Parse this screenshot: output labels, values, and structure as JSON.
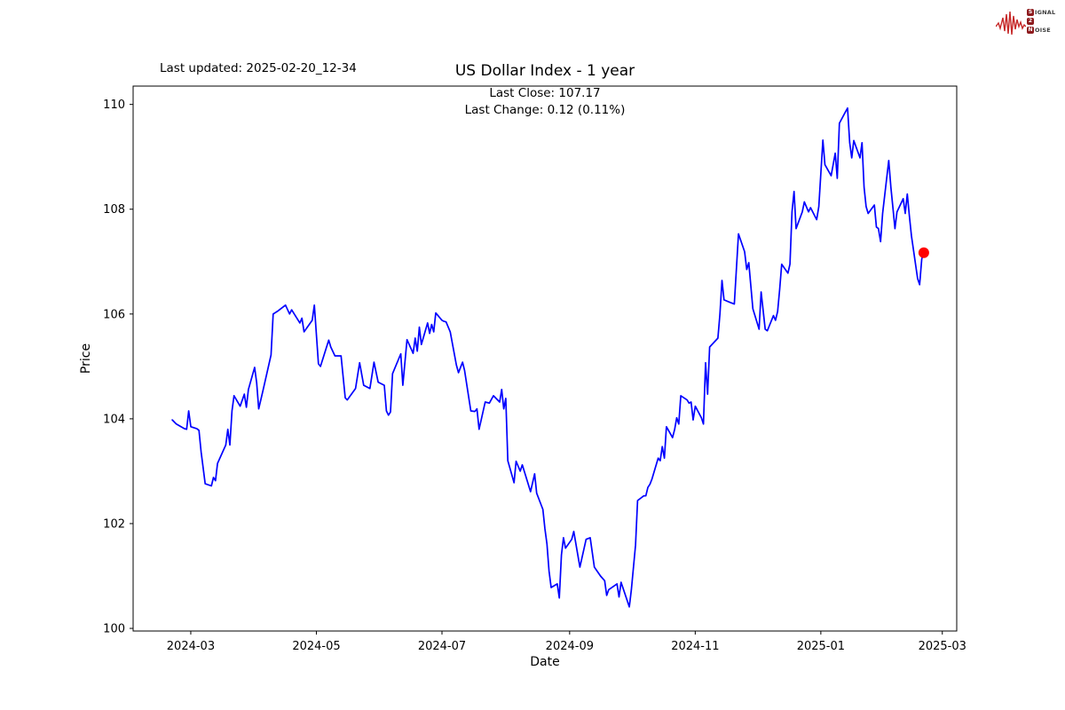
{
  "page": {
    "last_updated": "Last updated: 2025-02-20_12-34"
  },
  "logo": {
    "box_color": "#8e1b1e",
    "wave_color": "#c62828",
    "line1_initial": "S",
    "line1_rest": "IGNAL",
    "line2_initial": "2",
    "line2_rest": "",
    "line3_initial": "N",
    "line3_rest": "OISE"
  },
  "chart_data": {
    "type": "line",
    "title": "US Dollar Index - 1 year",
    "subtitle_line1": "Last Close: 107.17",
    "subtitle_line2": "Last Change: 0.12 (0.11%)",
    "xlabel": "Date",
    "ylabel": "Price",
    "last_close": 107.17,
    "last_change": "0.12 (0.11%)",
    "line_color": "#0000ff",
    "last_point_color": "#ff0000",
    "grid": false,
    "y_domain": [
      99.95,
      110.35
    ],
    "x_domain": [
      "2024-02-02",
      "2025-03-08"
    ],
    "y_ticks": [
      {
        "value": 100,
        "label": "100"
      },
      {
        "value": 102,
        "label": "102"
      },
      {
        "value": 104,
        "label": "104"
      },
      {
        "value": 106,
        "label": "106"
      },
      {
        "value": 108,
        "label": "108"
      },
      {
        "value": 110,
        "label": "110"
      }
    ],
    "x_ticks": [
      {
        "date": "2024-03-01",
        "label": "2024-03"
      },
      {
        "date": "2024-05-01",
        "label": "2024-05"
      },
      {
        "date": "2024-07-01",
        "label": "2024-07"
      },
      {
        "date": "2024-09-01",
        "label": "2024-09"
      },
      {
        "date": "2024-11-01",
        "label": "2024-11"
      },
      {
        "date": "2025-01-01",
        "label": "2025-01"
      },
      {
        "date": "2025-03-01",
        "label": "2025-03"
      }
    ],
    "series": [
      {
        "name": "US Dollar Index",
        "points": [
          [
            "2024-02-21",
            103.98
          ],
          [
            "2024-02-23",
            103.9
          ],
          [
            "2024-02-27",
            103.81
          ],
          [
            "2024-02-28",
            103.8
          ],
          [
            "2024-02-29",
            104.15
          ],
          [
            "2024-03-01",
            103.85
          ],
          [
            "2024-03-04",
            103.81
          ],
          [
            "2024-03-05",
            103.78
          ],
          [
            "2024-03-06",
            103.37
          ],
          [
            "2024-03-08",
            102.76
          ],
          [
            "2024-03-11",
            102.72
          ],
          [
            "2024-03-12",
            102.88
          ],
          [
            "2024-03-13",
            102.82
          ],
          [
            "2024-03-14",
            103.15
          ],
          [
            "2024-03-18",
            103.5
          ],
          [
            "2024-03-19",
            103.8
          ],
          [
            "2024-03-20",
            103.5
          ],
          [
            "2024-03-21",
            104.15
          ],
          [
            "2024-03-22",
            104.44
          ],
          [
            "2024-03-25",
            104.24
          ],
          [
            "2024-03-27",
            104.47
          ],
          [
            "2024-03-28",
            104.22
          ],
          [
            "2024-03-29",
            104.56
          ],
          [
            "2024-04-01",
            104.98
          ],
          [
            "2024-04-02",
            104.69
          ],
          [
            "2024-04-03",
            104.19
          ],
          [
            "2024-04-05",
            104.53
          ],
          [
            "2024-04-09",
            105.22
          ],
          [
            "2024-04-10",
            106.0
          ],
          [
            "2024-04-12",
            106.05
          ],
          [
            "2024-04-16",
            106.17
          ],
          [
            "2024-04-18",
            106.0
          ],
          [
            "2024-04-19",
            106.08
          ],
          [
            "2024-04-23",
            105.83
          ],
          [
            "2024-04-24",
            105.92
          ],
          [
            "2024-04-25",
            105.66
          ],
          [
            "2024-04-29",
            105.88
          ],
          [
            "2024-04-30",
            106.17
          ],
          [
            "2024-05-02",
            105.05
          ],
          [
            "2024-05-03",
            105.0
          ],
          [
            "2024-05-07",
            105.5
          ],
          [
            "2024-05-08",
            105.37
          ],
          [
            "2024-05-10",
            105.2
          ],
          [
            "2024-05-13",
            105.2
          ],
          [
            "2024-05-15",
            104.4
          ],
          [
            "2024-05-16",
            104.36
          ],
          [
            "2024-05-20",
            104.58
          ],
          [
            "2024-05-22",
            105.07
          ],
          [
            "2024-05-24",
            104.64
          ],
          [
            "2024-05-27",
            104.58
          ],
          [
            "2024-05-29",
            105.08
          ],
          [
            "2024-05-31",
            104.7
          ],
          [
            "2024-06-03",
            104.64
          ],
          [
            "2024-06-04",
            104.15
          ],
          [
            "2024-06-05",
            104.07
          ],
          [
            "2024-06-06",
            104.13
          ],
          [
            "2024-06-07",
            104.86
          ],
          [
            "2024-06-11",
            105.24
          ],
          [
            "2024-06-12",
            104.64
          ],
          [
            "2024-06-14",
            105.51
          ],
          [
            "2024-06-17",
            105.25
          ],
          [
            "2024-06-18",
            105.54
          ],
          [
            "2024-06-19",
            105.29
          ],
          [
            "2024-06-20",
            105.75
          ],
          [
            "2024-06-21",
            105.42
          ],
          [
            "2024-06-24",
            105.83
          ],
          [
            "2024-06-25",
            105.63
          ],
          [
            "2024-06-26",
            105.8
          ],
          [
            "2024-06-27",
            105.66
          ],
          [
            "2024-06-28",
            106.02
          ],
          [
            "2024-07-01",
            105.88
          ],
          [
            "2024-07-02",
            105.86
          ],
          [
            "2024-07-03",
            105.85
          ],
          [
            "2024-07-05",
            105.66
          ],
          [
            "2024-07-08",
            105.03
          ],
          [
            "2024-07-09",
            104.88
          ],
          [
            "2024-07-11",
            105.08
          ],
          [
            "2024-07-12",
            104.92
          ],
          [
            "2024-07-15",
            104.15
          ],
          [
            "2024-07-17",
            104.14
          ],
          [
            "2024-07-18",
            104.19
          ],
          [
            "2024-07-19",
            103.8
          ],
          [
            "2024-07-22",
            104.32
          ],
          [
            "2024-07-24",
            104.3
          ],
          [
            "2024-07-26",
            104.44
          ],
          [
            "2024-07-29",
            104.32
          ],
          [
            "2024-07-30",
            104.56
          ],
          [
            "2024-07-31",
            104.19
          ],
          [
            "2024-08-01",
            104.39
          ],
          [
            "2024-08-02",
            103.2
          ],
          [
            "2024-08-05",
            102.78
          ],
          [
            "2024-08-06",
            103.19
          ],
          [
            "2024-08-08",
            103.0
          ],
          [
            "2024-08-09",
            103.12
          ],
          [
            "2024-08-13",
            102.61
          ],
          [
            "2024-08-15",
            102.95
          ],
          [
            "2024-08-16",
            102.58
          ],
          [
            "2024-08-19",
            102.27
          ],
          [
            "2024-08-20",
            101.9
          ],
          [
            "2024-08-21",
            101.61
          ],
          [
            "2024-08-22",
            101.1
          ],
          [
            "2024-08-23",
            100.78
          ],
          [
            "2024-08-26",
            100.85
          ],
          [
            "2024-08-27",
            100.58
          ],
          [
            "2024-08-28",
            101.4
          ],
          [
            "2024-08-29",
            101.73
          ],
          [
            "2024-08-30",
            101.53
          ],
          [
            "2024-09-02",
            101.7
          ],
          [
            "2024-09-03",
            101.85
          ],
          [
            "2024-09-06",
            101.17
          ],
          [
            "2024-09-09",
            101.7
          ],
          [
            "2024-09-11",
            101.73
          ],
          [
            "2024-09-13",
            101.17
          ],
          [
            "2024-09-16",
            101.0
          ],
          [
            "2024-09-18",
            100.91
          ],
          [
            "2024-09-19",
            100.63
          ],
          [
            "2024-09-20",
            100.74
          ],
          [
            "2024-09-24",
            100.85
          ],
          [
            "2024-09-25",
            100.6
          ],
          [
            "2024-09-26",
            100.88
          ],
          [
            "2024-09-30",
            100.41
          ],
          [
            "2024-10-01",
            100.74
          ],
          [
            "2024-10-03",
            101.59
          ],
          [
            "2024-10-04",
            102.44
          ],
          [
            "2024-10-07",
            102.53
          ],
          [
            "2024-10-08",
            102.53
          ],
          [
            "2024-10-09",
            102.69
          ],
          [
            "2024-10-10",
            102.75
          ],
          [
            "2024-10-11",
            102.85
          ],
          [
            "2024-10-14",
            103.25
          ],
          [
            "2024-10-15",
            103.2
          ],
          [
            "2024-10-16",
            103.47
          ],
          [
            "2024-10-17",
            103.25
          ],
          [
            "2024-10-18",
            103.85
          ],
          [
            "2024-10-21",
            103.64
          ],
          [
            "2024-10-22",
            103.8
          ],
          [
            "2024-10-23",
            104.02
          ],
          [
            "2024-10-24",
            103.9
          ],
          [
            "2024-10-25",
            104.44
          ],
          [
            "2024-10-28",
            104.36
          ],
          [
            "2024-10-29",
            104.3
          ],
          [
            "2024-10-30",
            104.32
          ],
          [
            "2024-10-31",
            103.98
          ],
          [
            "2024-11-01",
            104.24
          ],
          [
            "2024-11-04",
            104.02
          ],
          [
            "2024-11-05",
            103.9
          ],
          [
            "2024-11-06",
            105.07
          ],
          [
            "2024-11-07",
            104.47
          ],
          [
            "2024-11-08",
            105.37
          ],
          [
            "2024-11-12",
            105.54
          ],
          [
            "2024-11-13",
            106.0
          ],
          [
            "2024-11-14",
            106.64
          ],
          [
            "2024-11-15",
            106.27
          ],
          [
            "2024-11-18",
            106.22
          ],
          [
            "2024-11-20",
            106.19
          ],
          [
            "2024-11-22",
            107.53
          ],
          [
            "2024-11-25",
            107.19
          ],
          [
            "2024-11-26",
            106.85
          ],
          [
            "2024-11-27",
            106.98
          ],
          [
            "2024-11-29",
            106.1
          ],
          [
            "2024-12-02",
            105.71
          ],
          [
            "2024-12-03",
            106.42
          ],
          [
            "2024-12-05",
            105.71
          ],
          [
            "2024-12-06",
            105.68
          ],
          [
            "2024-12-09",
            105.97
          ],
          [
            "2024-12-10",
            105.88
          ],
          [
            "2024-12-11",
            106.05
          ],
          [
            "2024-12-12",
            106.47
          ],
          [
            "2024-12-13",
            106.95
          ],
          [
            "2024-12-16",
            106.78
          ],
          [
            "2024-12-17",
            106.95
          ],
          [
            "2024-12-18",
            107.95
          ],
          [
            "2024-12-19",
            108.34
          ],
          [
            "2024-12-20",
            107.63
          ],
          [
            "2024-12-23",
            107.95
          ],
          [
            "2024-12-24",
            108.14
          ],
          [
            "2024-12-26",
            107.95
          ],
          [
            "2024-12-27",
            108.03
          ],
          [
            "2024-12-30",
            107.8
          ],
          [
            "2024-12-31",
            108.05
          ],
          [
            "2025-01-02",
            109.32
          ],
          [
            "2025-01-03",
            108.85
          ],
          [
            "2025-01-06",
            108.64
          ],
          [
            "2025-01-08",
            109.07
          ],
          [
            "2025-01-09",
            108.59
          ],
          [
            "2025-01-10",
            109.64
          ],
          [
            "2025-01-13",
            109.86
          ],
          [
            "2025-01-14",
            109.93
          ],
          [
            "2025-01-15",
            109.27
          ],
          [
            "2025-01-16",
            108.98
          ],
          [
            "2025-01-17",
            109.31
          ],
          [
            "2025-01-20",
            108.98
          ],
          [
            "2025-01-21",
            109.27
          ],
          [
            "2025-01-22",
            108.42
          ],
          [
            "2025-01-23",
            108.05
          ],
          [
            "2025-01-24",
            107.92
          ],
          [
            "2025-01-27",
            108.08
          ],
          [
            "2025-01-28",
            107.66
          ],
          [
            "2025-01-29",
            107.63
          ],
          [
            "2025-01-30",
            107.38
          ],
          [
            "2025-01-31",
            107.92
          ],
          [
            "2025-02-03",
            108.93
          ],
          [
            "2025-02-04",
            108.42
          ],
          [
            "2025-02-05",
            108.03
          ],
          [
            "2025-02-06",
            107.63
          ],
          [
            "2025-02-07",
            107.95
          ],
          [
            "2025-02-10",
            108.2
          ],
          [
            "2025-02-11",
            107.92
          ],
          [
            "2025-02-12",
            108.29
          ],
          [
            "2025-02-13",
            107.88
          ],
          [
            "2025-02-14",
            107.49
          ],
          [
            "2025-02-17",
            106.68
          ],
          [
            "2025-02-18",
            106.56
          ],
          [
            "2025-02-19",
            107.05
          ],
          [
            "2025-02-20",
            107.17
          ]
        ]
      }
    ]
  }
}
